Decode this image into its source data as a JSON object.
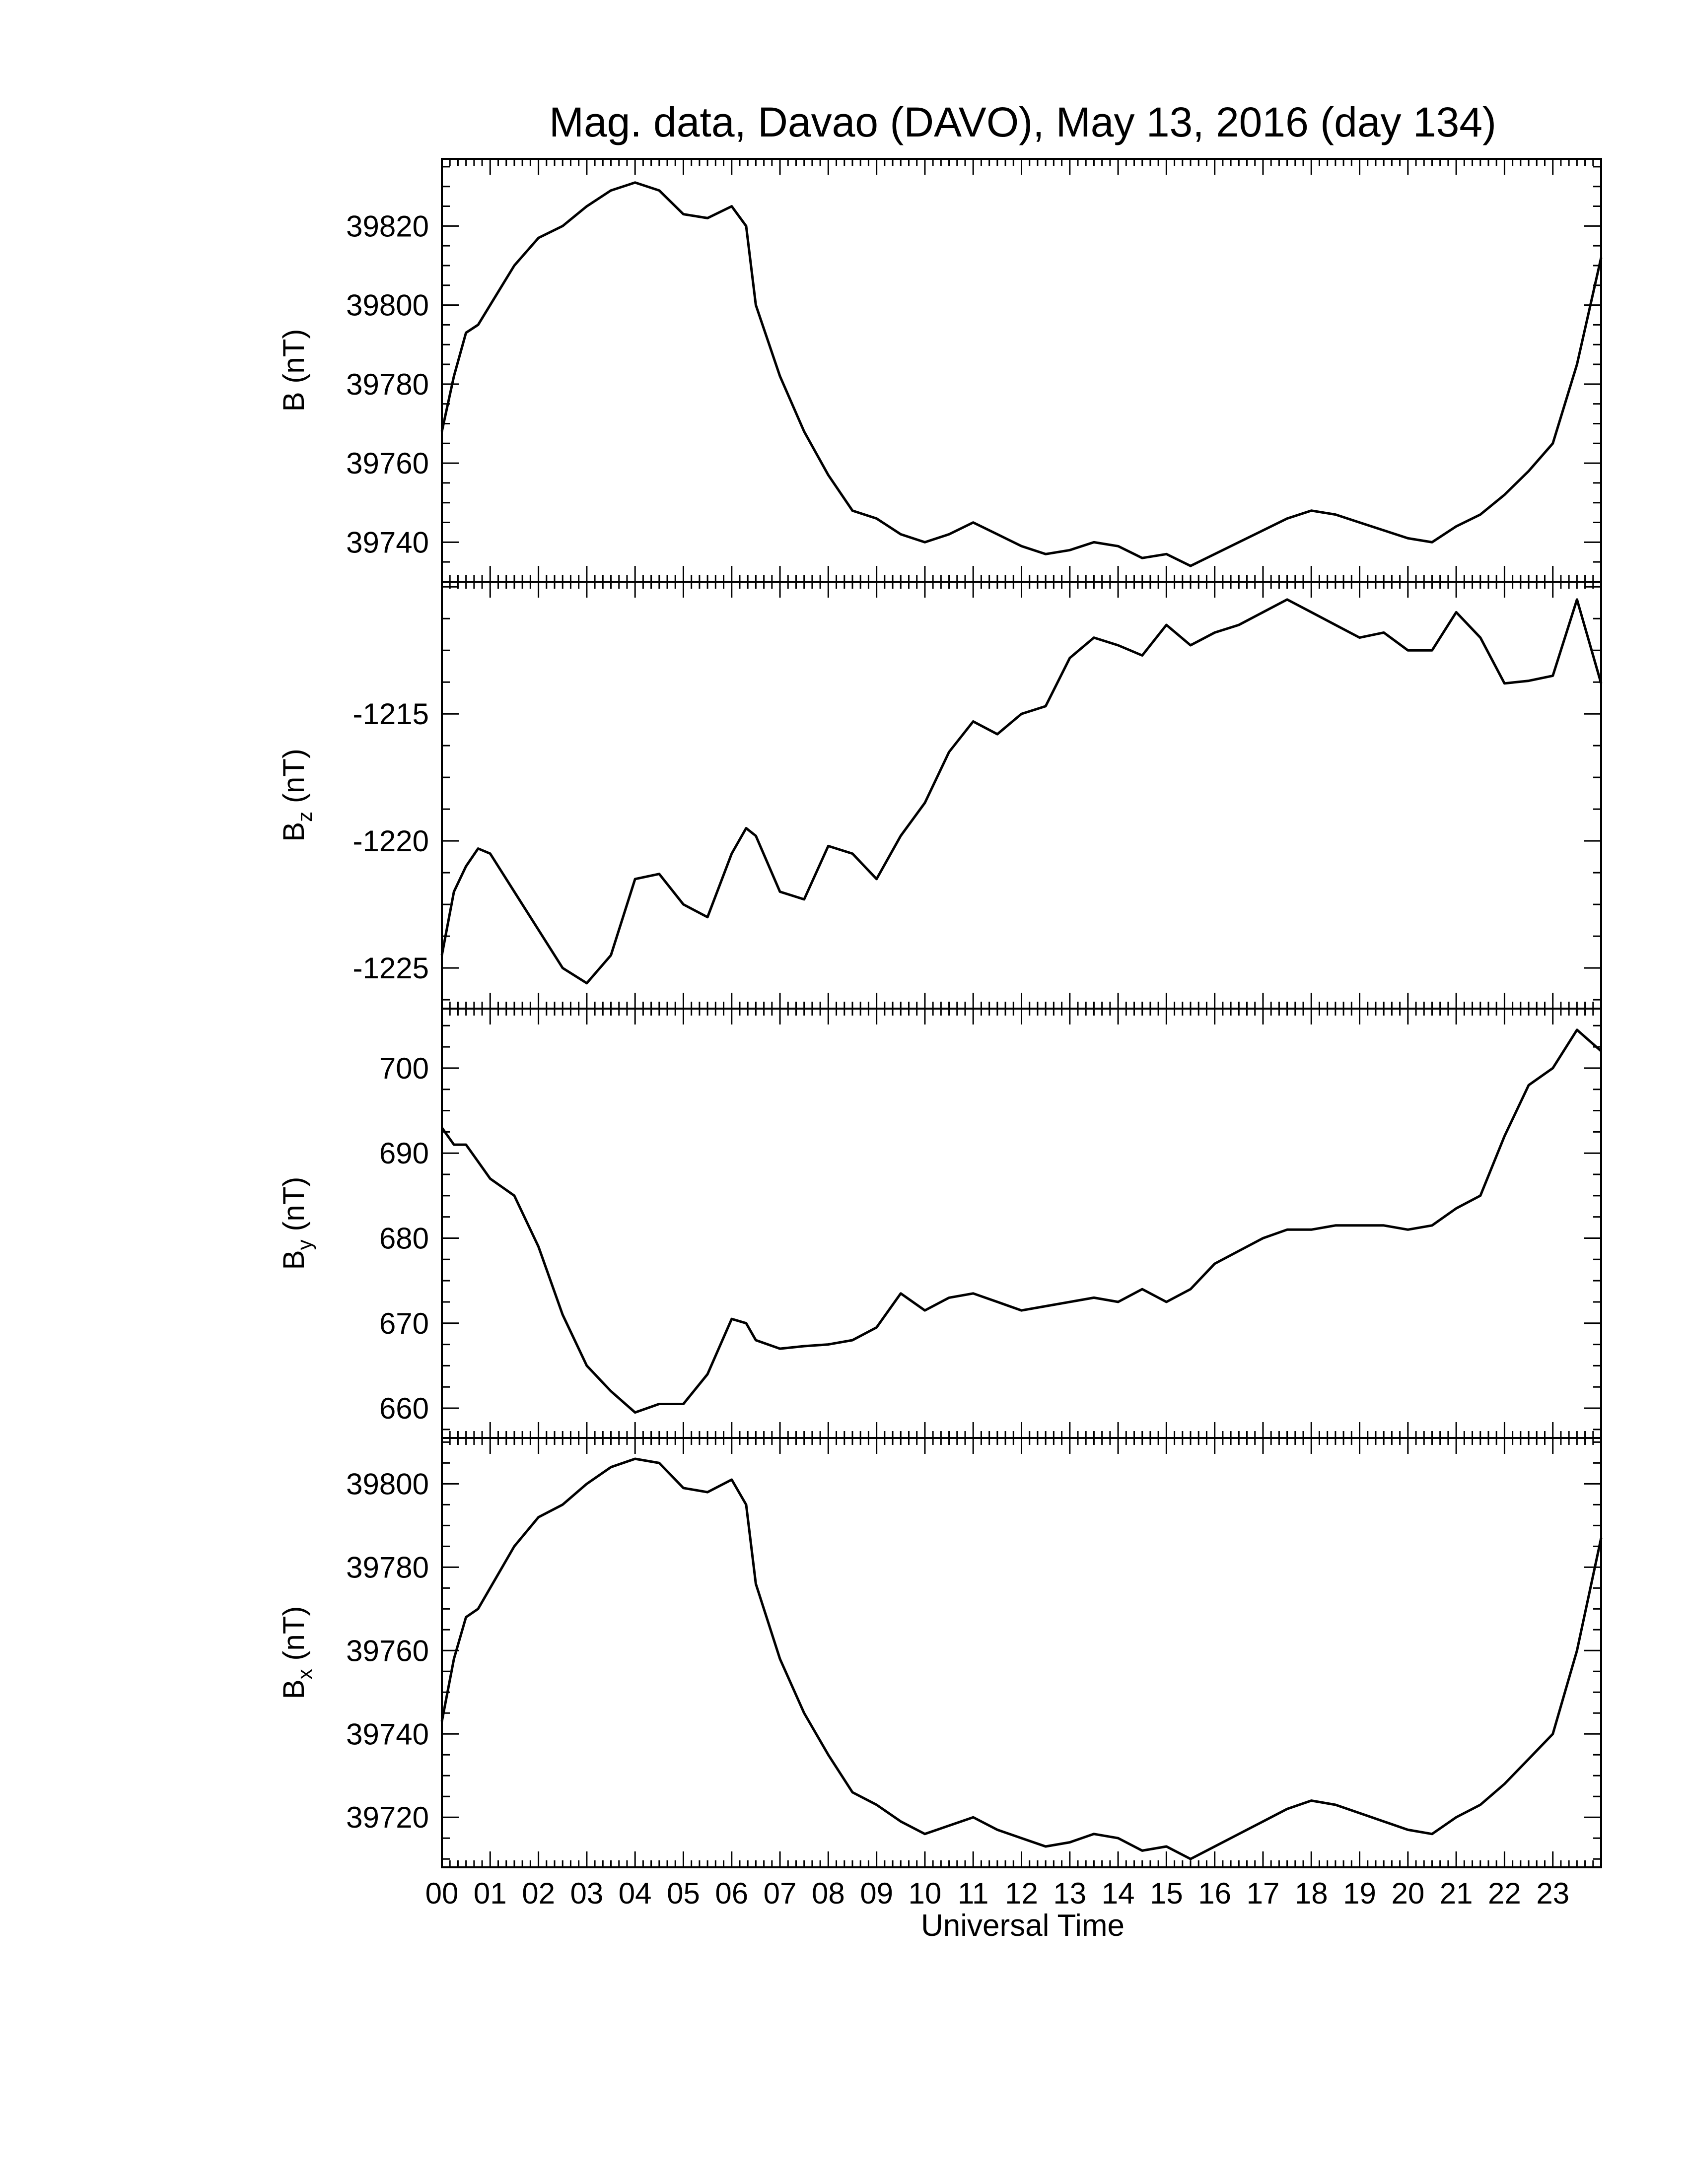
{
  "chart_data": {
    "type": "line",
    "title": "Mag. data, Davao (DAVO), May 13, 2016 (day 134)",
    "xlabel": "Universal Time",
    "x_tick_labels": [
      "00",
      "01",
      "02",
      "03",
      "04",
      "05",
      "06",
      "07",
      "08",
      "09",
      "10",
      "11",
      "12",
      "13",
      "14",
      "15",
      "16",
      "17",
      "18",
      "19",
      "20",
      "21",
      "22",
      "23"
    ],
    "xlim": [
      0,
      24
    ],
    "panels": [
      {
        "ylabel": "B (nT)",
        "ylabel_base": "B",
        "ylabel_sub": "",
        "ylabel_unit": "(nT)",
        "ylim": [
          39730,
          39837
        ],
        "yticks": [
          39740,
          39760,
          39780,
          39800,
          39820
        ],
        "x": [
          0,
          0.25,
          0.5,
          0.75,
          1,
          1.5,
          2,
          2.5,
          3,
          3.5,
          4,
          4.5,
          5,
          5.5,
          6,
          6.3,
          6.5,
          7,
          7.5,
          8,
          8.5,
          9,
          9.5,
          10,
          10.5,
          11,
          11.5,
          12,
          12.5,
          13,
          13.5,
          14,
          14.5,
          15,
          15.5,
          16,
          16.5,
          17,
          17.5,
          18,
          18.5,
          19,
          19.5,
          20,
          20.5,
          21,
          21.5,
          22,
          22.5,
          23,
          23.5,
          24
        ],
        "y": [
          39768,
          39782,
          39793,
          39795,
          39800,
          39810,
          39817,
          39820,
          39825,
          39829,
          39831,
          39829,
          39823,
          39822,
          39825,
          39820,
          39800,
          39782,
          39768,
          39757,
          39748,
          39746,
          39742,
          39740,
          39742,
          39745,
          39742,
          39739,
          39737,
          39738,
          39740,
          39739,
          39736,
          39737,
          39734,
          39737,
          39740,
          39743,
          39746,
          39748,
          39747,
          39745,
          39743,
          39741,
          39740,
          39744,
          39747,
          39752,
          39758,
          39765,
          39785,
          39812
        ]
      },
      {
        "ylabel": "Bz (nT)",
        "ylabel_base": "B",
        "ylabel_sub": "z",
        "ylabel_unit": "(nT)",
        "ylim": [
          -1226.6,
          -1209.8
        ],
        "yticks": [
          -1225,
          -1220,
          -1215
        ],
        "x": [
          0,
          0.25,
          0.5,
          0.75,
          1,
          1.5,
          2,
          2.5,
          3,
          3.5,
          4,
          4.5,
          5,
          5.5,
          6,
          6.3,
          6.5,
          7,
          7.5,
          8,
          8.5,
          9,
          9.5,
          10,
          10.5,
          11,
          11.5,
          12,
          12.5,
          13,
          13.5,
          14,
          14.5,
          15,
          15.5,
          16,
          16.5,
          17,
          17.5,
          18,
          18.5,
          19,
          19.5,
          20,
          20.5,
          21,
          21.5,
          22,
          22.5,
          23,
          23.5,
          24
        ],
        "y": [
          -1224.5,
          -1222,
          -1221,
          -1220.3,
          -1220.5,
          -1222,
          -1223.5,
          -1225,
          -1225.6,
          -1224.5,
          -1221.5,
          -1221.3,
          -1222.5,
          -1223,
          -1220.5,
          -1219.5,
          -1219.8,
          -1222,
          -1222.3,
          -1220.2,
          -1220.5,
          -1221.5,
          -1219.8,
          -1218.5,
          -1216.5,
          -1215.3,
          -1215.8,
          -1215,
          -1214.7,
          -1212.8,
          -1212,
          -1212.3,
          -1212.7,
          -1211.5,
          -1212.3,
          -1211.8,
          -1211.5,
          -1211,
          -1210.5,
          -1211,
          -1211.5,
          -1212,
          -1211.8,
          -1212.5,
          -1212.5,
          -1211,
          -1212,
          -1213.8,
          -1213.7,
          -1213.5,
          -1210.5,
          -1213.8
        ]
      },
      {
        "ylabel": "By (nT)",
        "ylabel_base": "B",
        "ylabel_sub": "y",
        "ylabel_unit": "(nT)",
        "ylim": [
          656.5,
          707
        ],
        "yticks": [
          660,
          670,
          680,
          690,
          700
        ],
        "x": [
          0,
          0.25,
          0.5,
          0.75,
          1,
          1.5,
          2,
          2.5,
          3,
          3.5,
          4,
          4.5,
          5,
          5.5,
          6,
          6.3,
          6.5,
          7,
          7.5,
          8,
          8.5,
          9,
          9.5,
          10,
          10.5,
          11,
          11.5,
          12,
          12.5,
          13,
          13.5,
          14,
          14.5,
          15,
          15.5,
          16,
          16.5,
          17,
          17.5,
          18,
          18.5,
          19,
          19.5,
          20,
          20.5,
          21,
          21.5,
          22,
          22.5,
          23,
          23.5,
          24
        ],
        "y": [
          693,
          691,
          691,
          689,
          687,
          685,
          679,
          671,
          665,
          662,
          659.5,
          660.5,
          660.5,
          664,
          670.5,
          670,
          668,
          667,
          667.3,
          667.5,
          668,
          669.5,
          673.5,
          671.5,
          673,
          673.5,
          672.5,
          671.5,
          672,
          672.5,
          673,
          672.5,
          674,
          672.5,
          674,
          677,
          678.5,
          680,
          681,
          681,
          681.5,
          681.5,
          681.5,
          681,
          681.5,
          683.5,
          685,
          692,
          698,
          700,
          704.5,
          702
        ]
      },
      {
        "ylabel": "Bx (nT)",
        "ylabel_base": "B",
        "ylabel_sub": "x",
        "ylabel_unit": "(nT)",
        "ylim": [
          39708,
          39811
        ],
        "yticks": [
          39720,
          39740,
          39760,
          39780,
          39800
        ],
        "x": [
          0,
          0.25,
          0.5,
          0.75,
          1,
          1.5,
          2,
          2.5,
          3,
          3.5,
          4,
          4.5,
          5,
          5.5,
          6,
          6.3,
          6.5,
          7,
          7.5,
          8,
          8.5,
          9,
          9.5,
          10,
          10.5,
          11,
          11.5,
          12,
          12.5,
          13,
          13.5,
          14,
          14.5,
          15,
          15.5,
          16,
          16.5,
          17,
          17.5,
          18,
          18.5,
          19,
          19.5,
          20,
          20.5,
          21,
          21.5,
          22,
          22.5,
          23,
          23.5,
          24
        ],
        "y": [
          39743,
          39758,
          39768,
          39770,
          39775,
          39785,
          39792,
          39795,
          39800,
          39804,
          39806,
          39805,
          39799,
          39798,
          39801,
          39795,
          39776,
          39758,
          39745,
          39735,
          39726,
          39723,
          39719,
          39716,
          39718,
          39720,
          39717,
          39715,
          39713,
          39714,
          39716,
          39715,
          39712,
          39713,
          39710,
          39713,
          39716,
          39719,
          39722,
          39724,
          39723,
          39721,
          39719,
          39717,
          39716,
          39720,
          39723,
          39728,
          39734,
          39740,
          39760,
          39787
        ]
      }
    ]
  }
}
